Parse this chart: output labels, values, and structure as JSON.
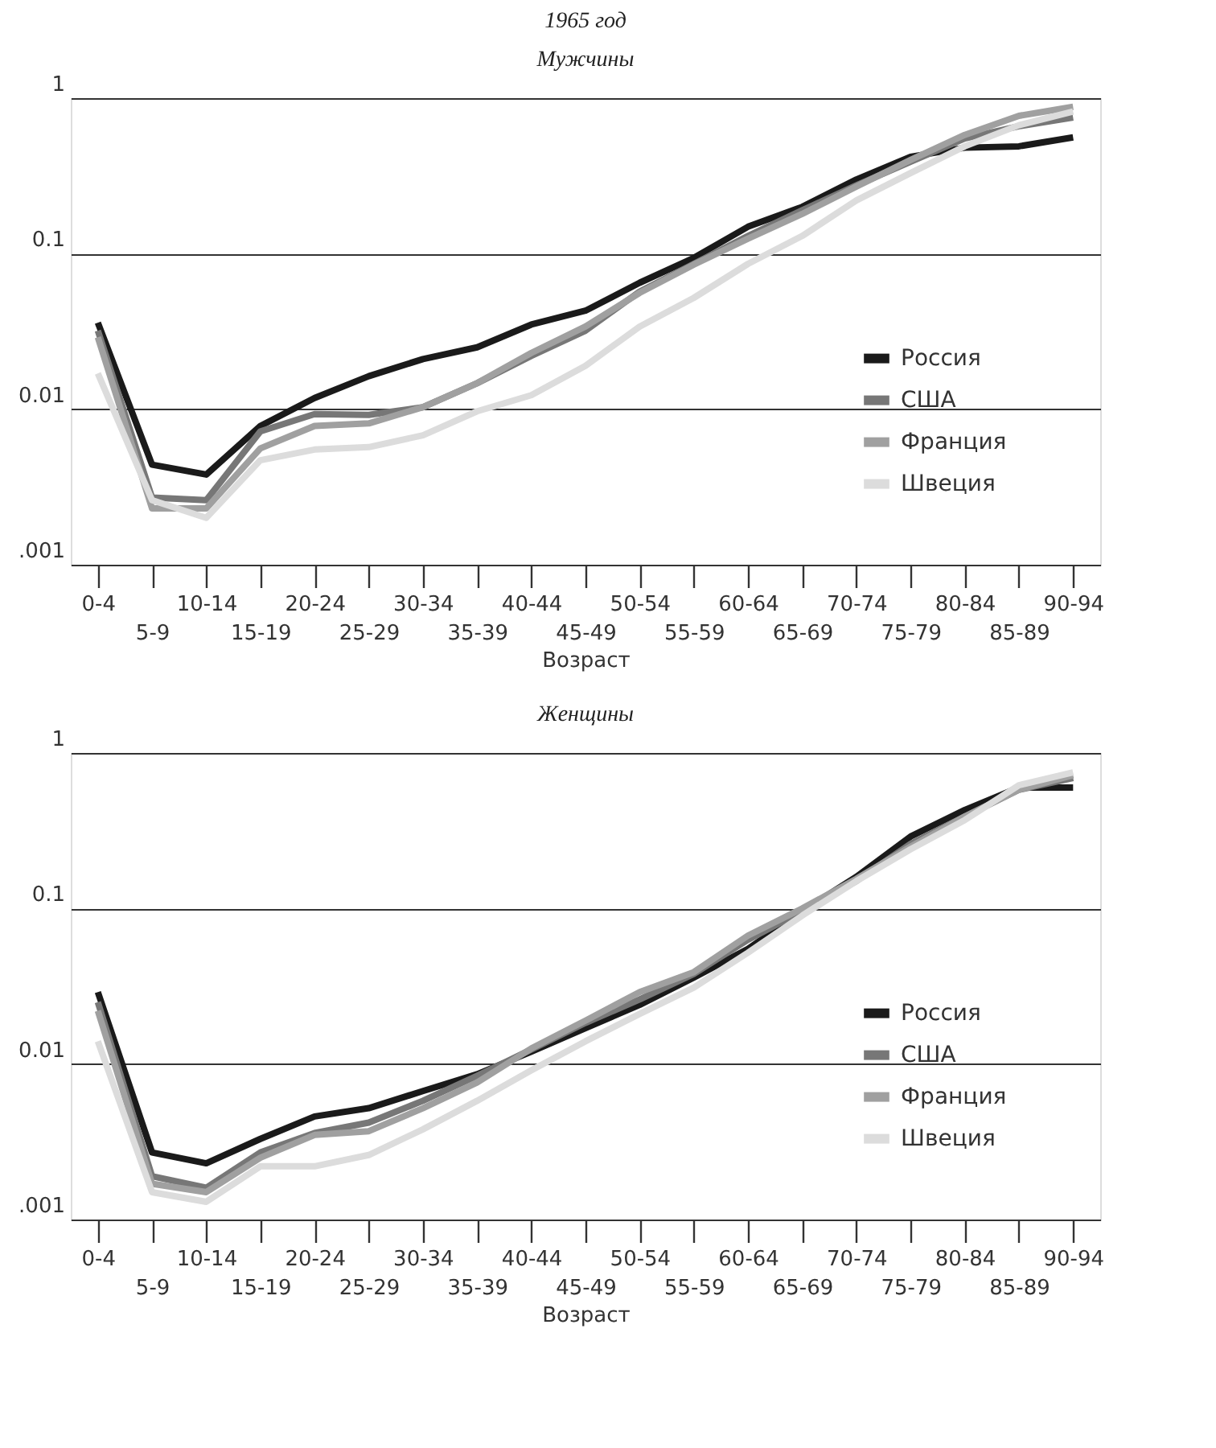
{
  "chart_data": [
    {
      "type": "line",
      "title": "1965 год",
      "subtitle": "Мужчины",
      "xlabel": "Возраст",
      "categories": [
        "0-4",
        "5-9",
        "10-14",
        "15-19",
        "20-24",
        "25-29",
        "30-34",
        "35-39",
        "40-44",
        "45-49",
        "50-54",
        "55-59",
        "60-64",
        "65-69",
        "70-74",
        "75-79",
        "80-84",
        "85-89",
        "90-94"
      ],
      "log": "y",
      "ylim": [
        0.001,
        1
      ],
      "yticks": [
        {
          "value": 0.001,
          "label": ".001"
        },
        0.01,
        0.1,
        1
      ],
      "grid": "y",
      "legend": "right",
      "marker": "none",
      "line_style": "solid",
      "series": [
        {
          "name": "Россия",
          "color": "#1a1a1a",
          "values": [
            0.036,
            0.0044,
            0.0038,
            0.0078,
            0.0118,
            0.0163,
            0.021,
            0.025,
            0.035,
            0.043,
            0.065,
            0.094,
            0.149,
            0.2,
            0.3,
            0.42,
            0.48,
            0.49,
            0.56
          ]
        },
        {
          "name": "США",
          "color": "#777777",
          "values": [
            0.032,
            0.0027,
            0.0026,
            0.0072,
            0.0093,
            0.0092,
            0.0103,
            0.0147,
            0.022,
            0.032,
            0.057,
            0.086,
            0.13,
            0.19,
            0.275,
            0.39,
            0.55,
            0.66,
            0.75
          ]
        },
        {
          "name": "Франция",
          "color": "#a0a0a0",
          "values": [
            0.029,
            0.0023,
            0.0023,
            0.0056,
            0.0078,
            0.0081,
            0.0103,
            0.0147,
            0.023,
            0.034,
            0.056,
            0.085,
            0.125,
            0.18,
            0.27,
            0.4,
            0.58,
            0.77,
            0.88
          ]
        },
        {
          "name": "Швеция",
          "color": "#dcdcdc",
          "values": [
            0.017,
            0.0026,
            0.002,
            0.0047,
            0.0055,
            0.0057,
            0.0068,
            0.0097,
            0.0123,
            0.019,
            0.034,
            0.052,
            0.086,
            0.13,
            0.22,
            0.33,
            0.49,
            0.67,
            0.82
          ]
        }
      ]
    },
    {
      "type": "line",
      "title": "Женщины",
      "xlabel": "Возраст",
      "categories": [
        "0-4",
        "5-9",
        "10-14",
        "15-19",
        "20-24",
        "25-29",
        "30-34",
        "35-39",
        "40-44",
        "45-49",
        "50-54",
        "55-59",
        "60-64",
        "65-69",
        "70-74",
        "75-79",
        "80-84",
        "85-89",
        "90-94"
      ],
      "log": "y",
      "ylim": [
        0.001,
        1
      ],
      "yticks": [
        {
          "value": 0.001,
          "label": ".001"
        },
        0.01,
        0.1,
        1
      ],
      "grid": "y",
      "legend": "right",
      "marker": "none",
      "line_style": "solid",
      "series": [
        {
          "name": "Россия",
          "color": "#1a1a1a",
          "values": [
            0.029,
            0.0027,
            0.0023,
            0.0033,
            0.0046,
            0.0052,
            0.0067,
            0.0086,
            0.012,
            0.017,
            0.024,
            0.036,
            0.055,
            0.096,
            0.16,
            0.29,
            0.43,
            0.6,
            0.6
          ]
        },
        {
          "name": "США",
          "color": "#777777",
          "values": [
            0.025,
            0.0019,
            0.0016,
            0.0027,
            0.0036,
            0.0042,
            0.0058,
            0.0084,
            0.0124,
            0.0184,
            0.026,
            0.038,
            0.063,
            0.096,
            0.15,
            0.26,
            0.39,
            0.58,
            0.69
          ]
        },
        {
          "name": "Франция",
          "color": "#a0a0a0",
          "values": [
            0.022,
            0.0017,
            0.0015,
            0.0025,
            0.0035,
            0.0037,
            0.0052,
            0.0076,
            0.0126,
            0.019,
            0.029,
            0.039,
            0.067,
            0.1,
            0.155,
            0.25,
            0.39,
            0.58,
            0.72
          ]
        },
        {
          "name": "Швеция",
          "color": "#dcdcdc",
          "values": [
            0.014,
            0.0015,
            0.0013,
            0.0022,
            0.0022,
            0.0026,
            0.0038,
            0.0058,
            0.0091,
            0.014,
            0.021,
            0.031,
            0.052,
            0.09,
            0.15,
            0.24,
            0.37,
            0.62,
            0.75
          ]
        }
      ]
    }
  ]
}
